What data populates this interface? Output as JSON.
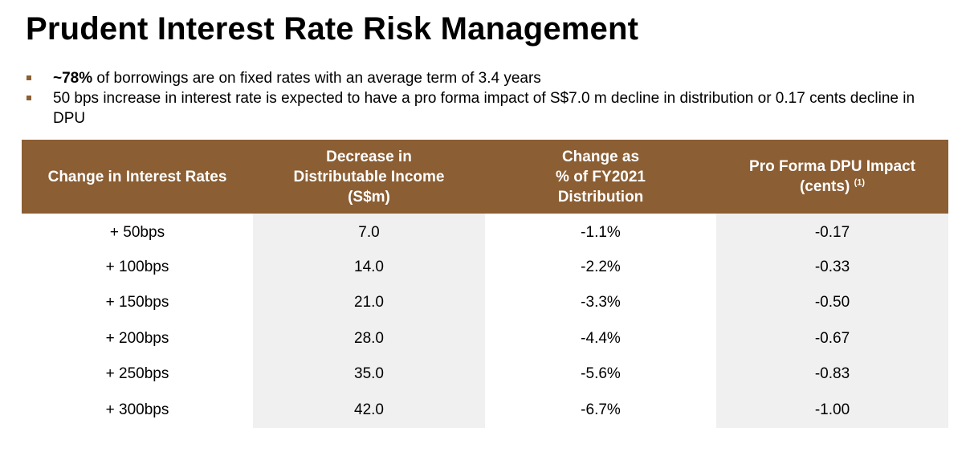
{
  "title": "Prudent Interest Rate Risk Management",
  "bullets": [
    {
      "strong": "~78%",
      "text": " of borrowings are on fixed rates with an average term of 3.4 years"
    },
    {
      "strong": "",
      "text": "50 bps increase in interest rate is expected to have a pro forma impact of S$7.0 m decline in distribution or 0.17 cents decline in DPU"
    }
  ],
  "table": {
    "headers": [
      {
        "lines": [
          "Change in Interest Rates"
        ],
        "sup": ""
      },
      {
        "lines": [
          "Decrease in",
          "Distributable Income",
          "(S$m)"
        ],
        "sup": ""
      },
      {
        "lines": [
          "Change as",
          "% of FY2021",
          "Distribution"
        ],
        "sup": ""
      },
      {
        "lines": [
          "Pro Forma DPU Impact",
          "(cents)"
        ],
        "sup": "(1)"
      }
    ],
    "rows": [
      [
        "+ 50bps",
        "7.0",
        "-1.1%",
        "-0.17"
      ],
      [
        "+ 100bps",
        "14.0",
        "-2.2%",
        "-0.33"
      ],
      [
        "+ 150bps",
        "21.0",
        "-3.3%",
        "-0.50"
      ],
      [
        "+ 200bps",
        "28.0",
        "-4.4%",
        "-0.67"
      ],
      [
        "+ 250bps",
        "35.0",
        "-5.6%",
        "-0.83"
      ],
      [
        "+ 300bps",
        "42.0",
        "-6.7%",
        "-1.00"
      ]
    ]
  },
  "colors": {
    "header_bg": "#8b5e33",
    "bullet": "#8b6033",
    "shaded_col": "#f0f0f0"
  }
}
